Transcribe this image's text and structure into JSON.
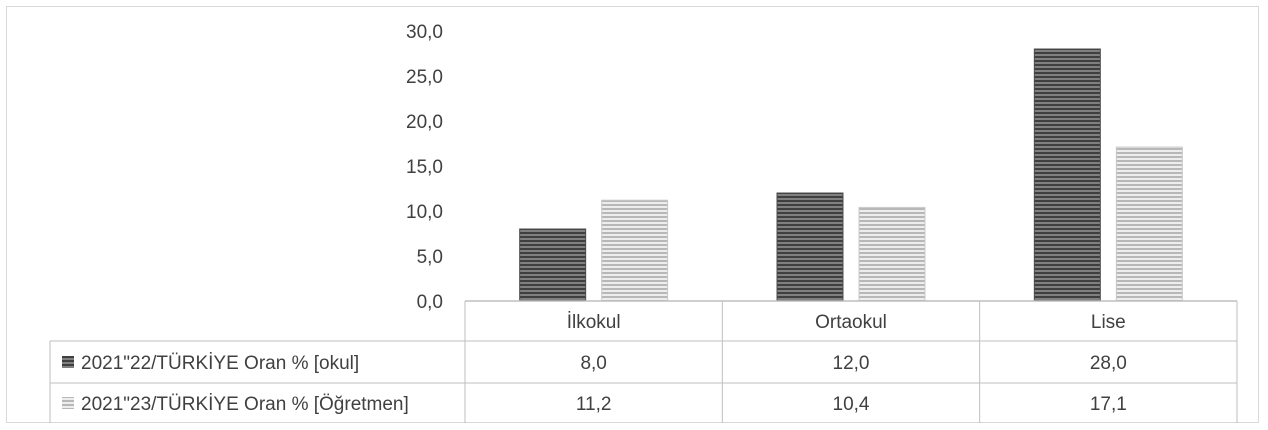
{
  "chart_data": {
    "type": "bar",
    "categories": [
      "İlkokul",
      "Ortaokul",
      "Lise"
    ],
    "series": [
      {
        "name": "2021\"22/TÜRKİYE Oran % [okul]",
        "values": [
          8.0,
          12.0,
          28.0
        ],
        "value_labels": [
          "8,0",
          "12,0",
          "28,0"
        ],
        "color": "#595959"
      },
      {
        "name": "2021\"23/TÜRKİYE Oran % [Öğretmen]",
        "values": [
          11.2,
          10.4,
          17.1
        ],
        "value_labels": [
          "11,2",
          "10,4",
          "17,1"
        ],
        "color": "#bfbfbf"
      }
    ],
    "ylim": [
      0,
      30
    ],
    "y_ticks": [
      0,
      5,
      10,
      15,
      20,
      25,
      30
    ],
    "y_tick_labels": [
      "0,0",
      "5,0",
      "10,0",
      "15,0",
      "20,0",
      "25,0",
      "30,0"
    ],
    "grid": false,
    "legend": "data-table",
    "pattern": "horizontal-stripes"
  }
}
